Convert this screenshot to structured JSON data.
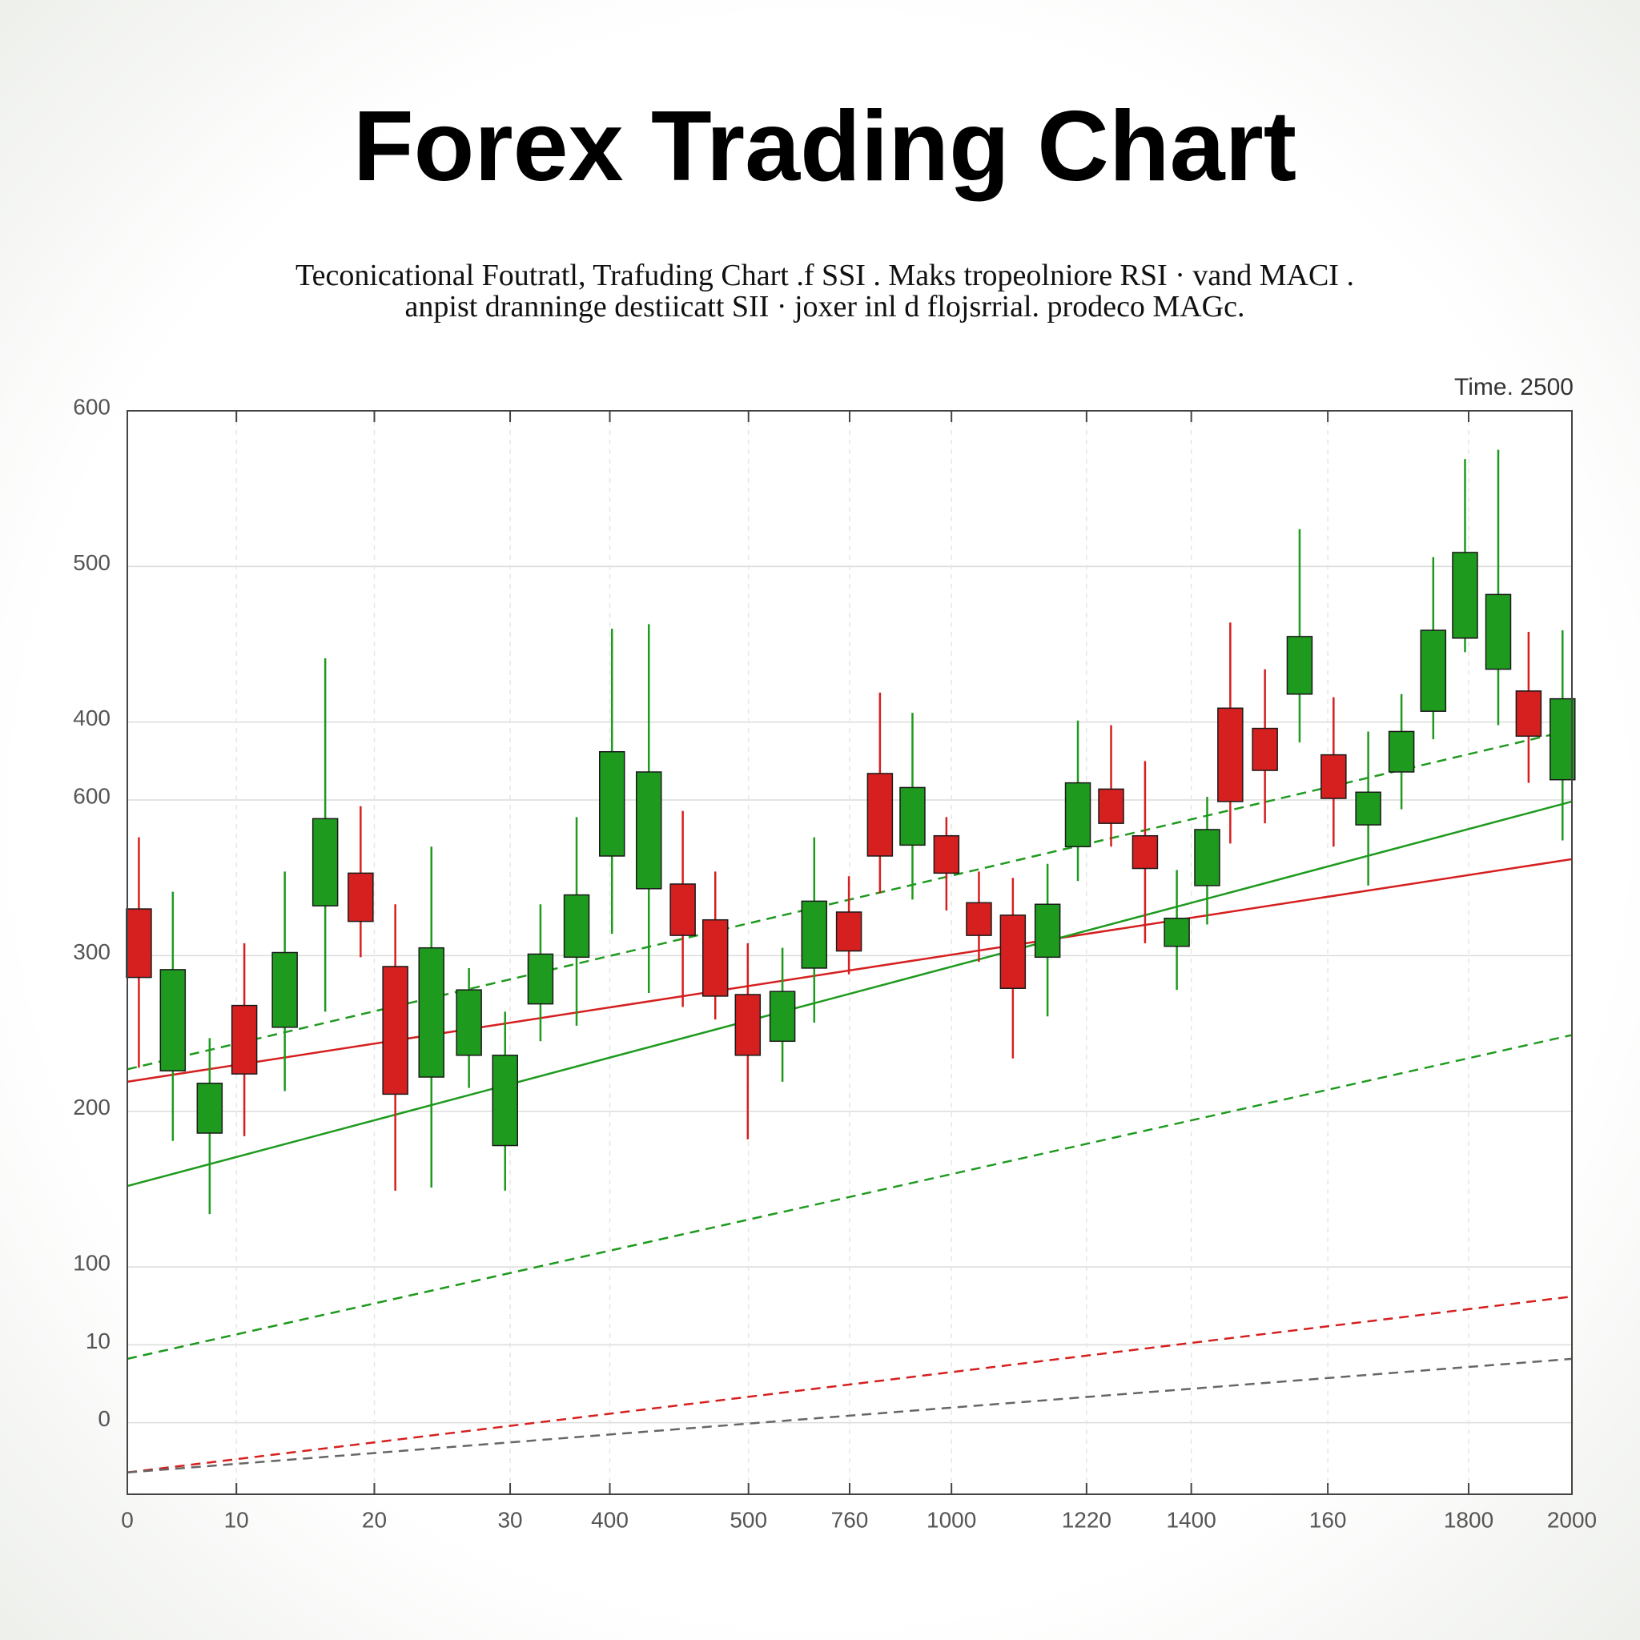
{
  "chart_data": {
    "type": "candlestick",
    "title": "Forex Trading Chart",
    "subtitle": [
      "Teconicational Foutratl, Trafuding Chart .f SSI . Maks tropeolniore RSI · vand MACI .",
      "anpist dranninge destiicatt SII · joxer inl d flojsrrial. prodeco MAGc."
    ],
    "annotation": "Time. 2500",
    "up_color": "#1e9a1e",
    "down_color": "#d61f1f",
    "grid": true,
    "xlim": [
      0,
      2000
    ],
    "ylim": [
      -96,
      600
    ],
    "xticks": [
      0,
      {
        "value": 151,
        "label": "10"
      },
      {
        "value": 342,
        "label": "20"
      },
      {
        "value": 530,
        "label": "30"
      },
      {
        "value": 668,
        "label": "400"
      },
      {
        "value": 860,
        "label": "500"
      },
      {
        "value": 1000,
        "label": "760"
      },
      {
        "value": 1141,
        "label": "1000"
      },
      {
        "value": 1328,
        "label": "1220"
      },
      {
        "value": 1473,
        "label": "1400"
      },
      {
        "value": 1662,
        "label": "160"
      },
      {
        "value": 1857,
        "label": "1800"
      },
      2000
    ],
    "yticks": [
      600,
      500,
      400,
      {
        "value": 350,
        "label": "600"
      },
      {
        "value": 250,
        "label": "300"
      },
      {
        "value": 150,
        "label": "200"
      },
      {
        "value": 50,
        "label": "100"
      },
      {
        "value": 0,
        "label": "10"
      },
      {
        "value": -50,
        "label": "0"
      }
    ],
    "x": [
      16,
      63,
      114,
      162,
      218,
      274,
      323,
      371,
      421,
      473,
      523,
      572,
      622,
      671,
      722,
      769,
      814,
      859,
      907,
      951,
      999,
      1042,
      1087,
      1134,
      1179,
      1226,
      1274,
      1316,
      1362,
      1409,
      1453,
      1495,
      1527,
      1575,
      1623,
      1670,
      1718,
      1764,
      1808,
      1852,
      1898,
      1940,
      1987
    ],
    "open": [
      280,
      176,
      136,
      218,
      204,
      282,
      303,
      243,
      172,
      186,
      128,
      219,
      249,
      314,
      293,
      296,
      273,
      225,
      195,
      242,
      278,
      367,
      321,
      327,
      284,
      276,
      249,
      320,
      357,
      327,
      256,
      295,
      409,
      396,
      418,
      379,
      334,
      368,
      407,
      454,
      434,
      420,
      363
    ],
    "high": [
      326,
      291,
      197,
      258,
      304,
      441,
      346,
      283,
      320,
      242,
      214,
      283,
      339,
      460,
      463,
      343,
      304,
      258,
      255,
      326,
      301,
      419,
      406,
      339,
      304,
      300,
      309,
      401,
      398,
      375,
      305,
      352,
      464,
      434,
      524,
      416,
      394,
      418,
      506,
      569,
      575,
      458,
      459
    ],
    "low": [
      178,
      131,
      84,
      134,
      163,
      214,
      249,
      99,
      101,
      165,
      99,
      195,
      205,
      264,
      226,
      217,
      209,
      132,
      169,
      207,
      238,
      290,
      286,
      279,
      246,
      184,
      211,
      298,
      320,
      258,
      228,
      270,
      322,
      335,
      387,
      320,
      295,
      344,
      389,
      445,
      398,
      361,
      324
    ],
    "close": [
      236,
      241,
      168,
      174,
      252,
      338,
      272,
      161,
      255,
      228,
      186,
      251,
      289,
      381,
      368,
      263,
      224,
      186,
      227,
      285,
      253,
      314,
      358,
      303,
      263,
      229,
      283,
      361,
      335,
      306,
      274,
      331,
      349,
      369,
      455,
      351,
      355,
      394,
      459,
      509,
      482,
      391,
      415
    ],
    "lines": [
      {
        "color": "#d61f1f",
        "dashed": false,
        "x": [
          0,
          2000
        ],
        "values": [
          169,
          312
        ]
      },
      {
        "color": "#1e9a1e",
        "dashed": false,
        "x": [
          0,
          2000
        ],
        "values": [
          102,
          349
        ]
      },
      {
        "color": "#1e9a1e",
        "dashed": true,
        "x": [
          0,
          2000
        ],
        "values": [
          -9,
          199
        ]
      },
      {
        "color": "#1e9a1e",
        "dashed": true,
        "x": [
          0,
          2000
        ],
        "values": [
          177,
          395
        ]
      },
      {
        "color": "#d61f1f",
        "dashed": true,
        "x": [
          0,
          2000
        ],
        "values": [
          -82,
          31
        ]
      },
      {
        "color": "#666666",
        "dashed": true,
        "x": [
          0,
          2000
        ],
        "values": [
          -82,
          -9
        ]
      }
    ]
  }
}
